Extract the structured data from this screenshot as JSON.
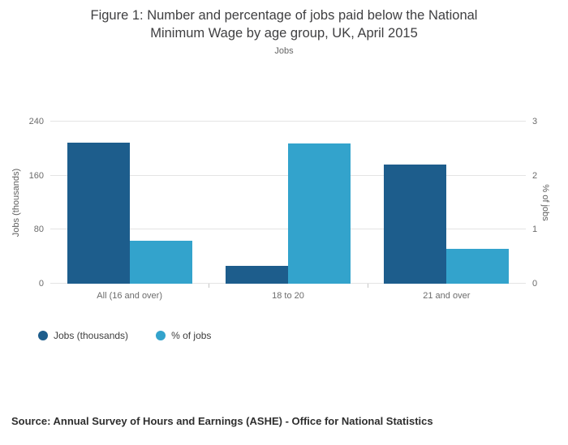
{
  "title": {
    "line1": "Figure 1: Number and percentage of jobs paid below the National",
    "line2": "Minimum Wage by age group, UK, April 2015"
  },
  "subtitle": "Jobs",
  "source": "Source: Annual Survey of Hours and Earnings (ASHE) - Office for National Statistics",
  "chart_data": {
    "type": "bar",
    "title": "Figure 1: Number and percentage of jobs paid below the National Minimum Wage by age group, UK, April 2015",
    "subtitle": "Jobs",
    "categories": [
      "All (16 and over)",
      "18 to 20",
      "21 and over"
    ],
    "series": [
      {
        "name": "Jobs (thousands)",
        "axis": "left",
        "color": "#1d5d8c",
        "values": [
          209,
          27,
          176
        ]
      },
      {
        "name": "% of jobs",
        "axis": "right",
        "color": "#33a3cc",
        "values": [
          0.8,
          2.6,
          0.65
        ]
      }
    ],
    "left_axis": {
      "label": "Jobs (thousands)",
      "ticks": [
        0,
        80,
        160,
        240
      ],
      "max": 240
    },
    "right_axis": {
      "label": "% of jobs",
      "ticks": [
        0,
        1,
        2,
        3
      ],
      "max": 3
    },
    "grid": true,
    "legend_position": "bottom-left"
  }
}
